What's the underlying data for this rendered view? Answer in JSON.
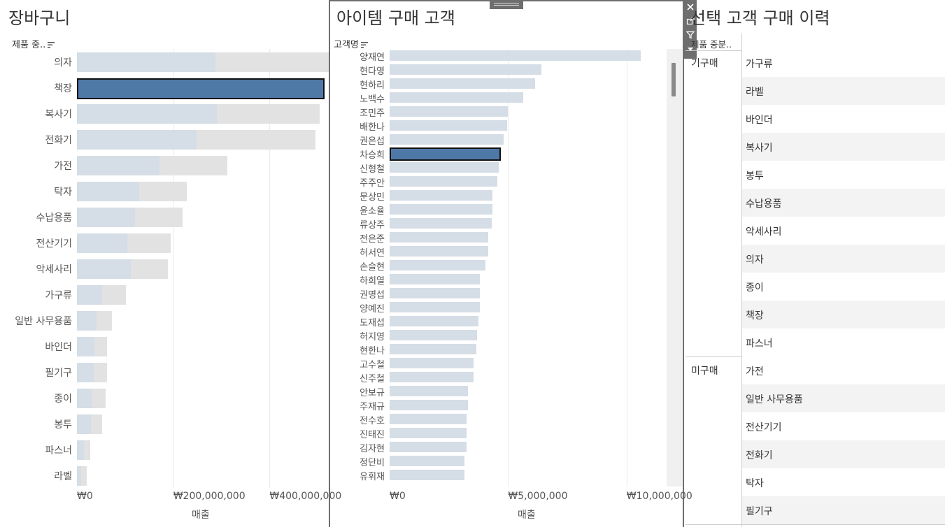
{
  "panel1": {
    "title": "장바구니",
    "header": "제품 중..",
    "axis_title": "매출",
    "ticks": [
      {
        "label": "₩0",
        "value": 0
      },
      {
        "label": "₩200,000,000",
        "value": 200000000
      },
      {
        "label": "₩400,000,000",
        "value": 400000000
      }
    ]
  },
  "panel2": {
    "title": "아이템 구매 고객",
    "header": "고객명",
    "axis_title": "매출",
    "ticks": [
      {
        "label": "₩0",
        "value": 0
      },
      {
        "label": "₩5,000,000",
        "value": 5000000
      },
      {
        "label": "₩10,000,000",
        "value": 10000000
      }
    ]
  },
  "panel3": {
    "title": "선택 고객 구매 이력",
    "header": "제품 중분..",
    "groups": [
      {
        "name": "기구매",
        "items": [
          "가구류",
          "라벨",
          "바인더",
          "복사기",
          "봉투",
          "수납용품",
          "악세사리",
          "의자",
          "종이",
          "책장",
          "파스너"
        ]
      },
      {
        "name": "미구매",
        "items": [
          "가전",
          "일반 사무용품",
          "전산기기",
          "전화기",
          "탁자",
          "필기구"
        ]
      }
    ]
  },
  "toolbar": {
    "icons": [
      "close-icon",
      "open-external-icon",
      "filter-icon",
      "more-options-icon"
    ]
  },
  "colors": {
    "selected": "#4e79a7",
    "bar_light": "#d5dde6",
    "bar_total": "#e2e2e2"
  },
  "chart_data": [
    {
      "type": "bar",
      "orientation": "horizontal",
      "title": "장바구니",
      "xlabel": "매출",
      "ylabel": "제품 중..",
      "xlim": [
        0,
        520000000
      ],
      "categories": [
        "의자",
        "책장",
        "복사기",
        "전화기",
        "가전",
        "탁자",
        "수납용품",
        "전산기기",
        "악세사리",
        "가구류",
        "일반 사무용품",
        "바인더",
        "필기구",
        "종이",
        "봉투",
        "파스너",
        "라벨"
      ],
      "series": [
        {
          "values": [
            288000000,
            514000000,
            290000000,
            249000000,
            172000000,
            129000000,
            120000000,
            104000000,
            112000000,
            53000000,
            40000000,
            37000000,
            35000000,
            32000000,
            29000000,
            15000000,
            9000000
          ]
        },
        {
          "values": [
            523000000,
            514000000,
            504000000,
            495000000,
            313000000,
            228000000,
            219000000,
            194000000,
            189000000,
            101000000,
            72000000,
            63000000,
            63000000,
            60000000,
            52000000,
            28000000,
            21000000
          ]
        }
      ],
      "selected": "책장"
    },
    {
      "type": "bar",
      "orientation": "horizontal",
      "title": "아이템 구매 고객",
      "xlabel": "매출",
      "ylabel": "고객명",
      "xlim": [
        0,
        11600000
      ],
      "categories": [
        "양재연",
        "현다영",
        "현하리",
        "노백수",
        "조민주",
        "배한나",
        "권은섭",
        "차승희",
        "신형철",
        "주주안",
        "문상민",
        "윤소율",
        "류상주",
        "전은준",
        "허서연",
        "손슬현",
        "하희열",
        "권명섭",
        "양예진",
        "도재섭",
        "허지영",
        "현한나",
        "고수철",
        "신주철",
        "안보규",
        "주재규",
        "전수호",
        "진태진",
        "김자현",
        "정단비",
        "유휘재"
      ],
      "values": [
        10600000,
        6400000,
        6150000,
        5650000,
        5000000,
        4950000,
        4800000,
        4700000,
        4600000,
        4550000,
        4350000,
        4350000,
        4300000,
        4150000,
        4150000,
        4050000,
        3800000,
        3800000,
        3800000,
        3750000,
        3700000,
        3650000,
        3550000,
        3550000,
        3300000,
        3300000,
        3250000,
        3250000,
        3250000,
        3150000,
        3150000
      ],
      "selected": "차승희"
    }
  ]
}
